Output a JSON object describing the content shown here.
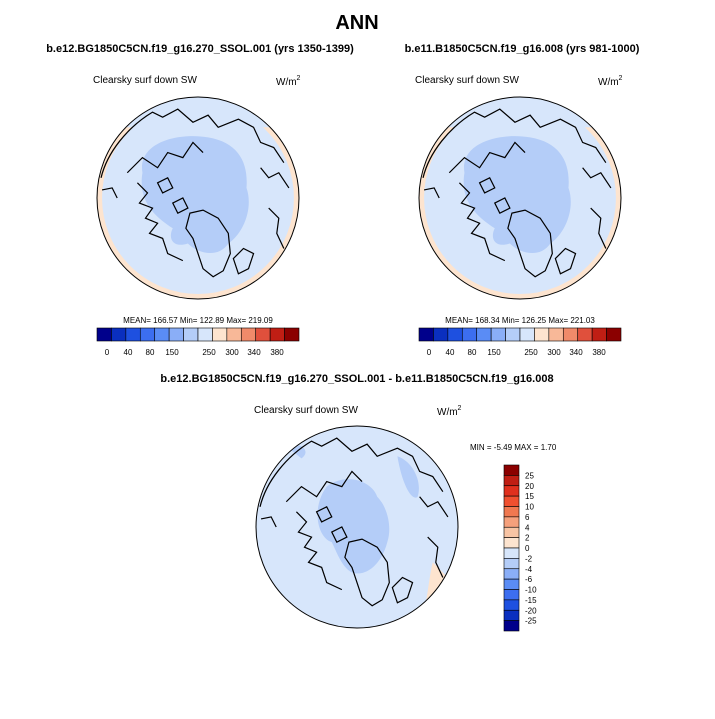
{
  "title": "ANN",
  "panels": [
    {
      "subtitle": "b.e12.BG1850C5CN.f19_g16.270_SSOL.001 (yrs 1350-1399)",
      "field_label": "Clearsky surf down SW",
      "units": "W/m",
      "units_sup": "2",
      "stats": "MEAN= 166.57  Min= 122.89  Max= 219.09",
      "colorbar": {
        "labels": [
          "0",
          "40",
          "80",
          "150",
          "250",
          "300",
          "340",
          "380"
        ],
        "colors": [
          "#00008b",
          "#0a2fbf",
          "#1e50e0",
          "#3c6ef0",
          "#5a8cf5",
          "#8aaef7",
          "#b4cdf8",
          "#d7e6fb",
          "#fde4cf",
          "#f8b898",
          "#f08a6a",
          "#e0503c",
          "#c01e14",
          "#8b0000"
        ]
      }
    },
    {
      "subtitle": "b.e11.B1850C5CN.f19_g16.008 (yrs 981-1000)",
      "field_label": "Clearsky surf down SW",
      "units": "W/m",
      "units_sup": "2",
      "stats": "MEAN= 168.34  Min= 126.25  Max= 221.03",
      "colorbar": {
        "labels": [
          "0",
          "40",
          "80",
          "150",
          "250",
          "300",
          "340",
          "380"
        ],
        "colors": [
          "#00008b",
          "#0a2fbf",
          "#1e50e0",
          "#3c6ef0",
          "#5a8cf5",
          "#8aaef7",
          "#b4cdf8",
          "#d7e6fb",
          "#fde4cf",
          "#f8b898",
          "#f08a6a",
          "#e0503c",
          "#c01e14",
          "#8b0000"
        ]
      }
    }
  ],
  "difference": {
    "subtitle": "b.e12.BG1850C5CN.f19_g16.270_SSOL.001 - b.e11.B1850C5CN.f19_g16.008",
    "field_label": "Clearsky surf down SW",
    "units": "W/m",
    "units_sup": "2",
    "stats": "MIN =  -5.49 MAX =   1.70",
    "colorbar": {
      "labels": [
        "25",
        "20",
        "15",
        "10",
        "6",
        "4",
        "2",
        "0",
        "-2",
        "-4",
        "-6",
        "-10",
        "-15",
        "-20",
        "-25"
      ],
      "colors": [
        "#8b0000",
        "#c01e14",
        "#e0301e",
        "#f05030",
        "#f07850",
        "#f5a07c",
        "#f8c4a4",
        "#fde4cf",
        "#d7e6fb",
        "#b4cdf8",
        "#8aaef7",
        "#5a8cf5",
        "#3c6ef0",
        "#1e50e0",
        "#0a2fbf",
        "#00008b"
      ]
    }
  }
}
